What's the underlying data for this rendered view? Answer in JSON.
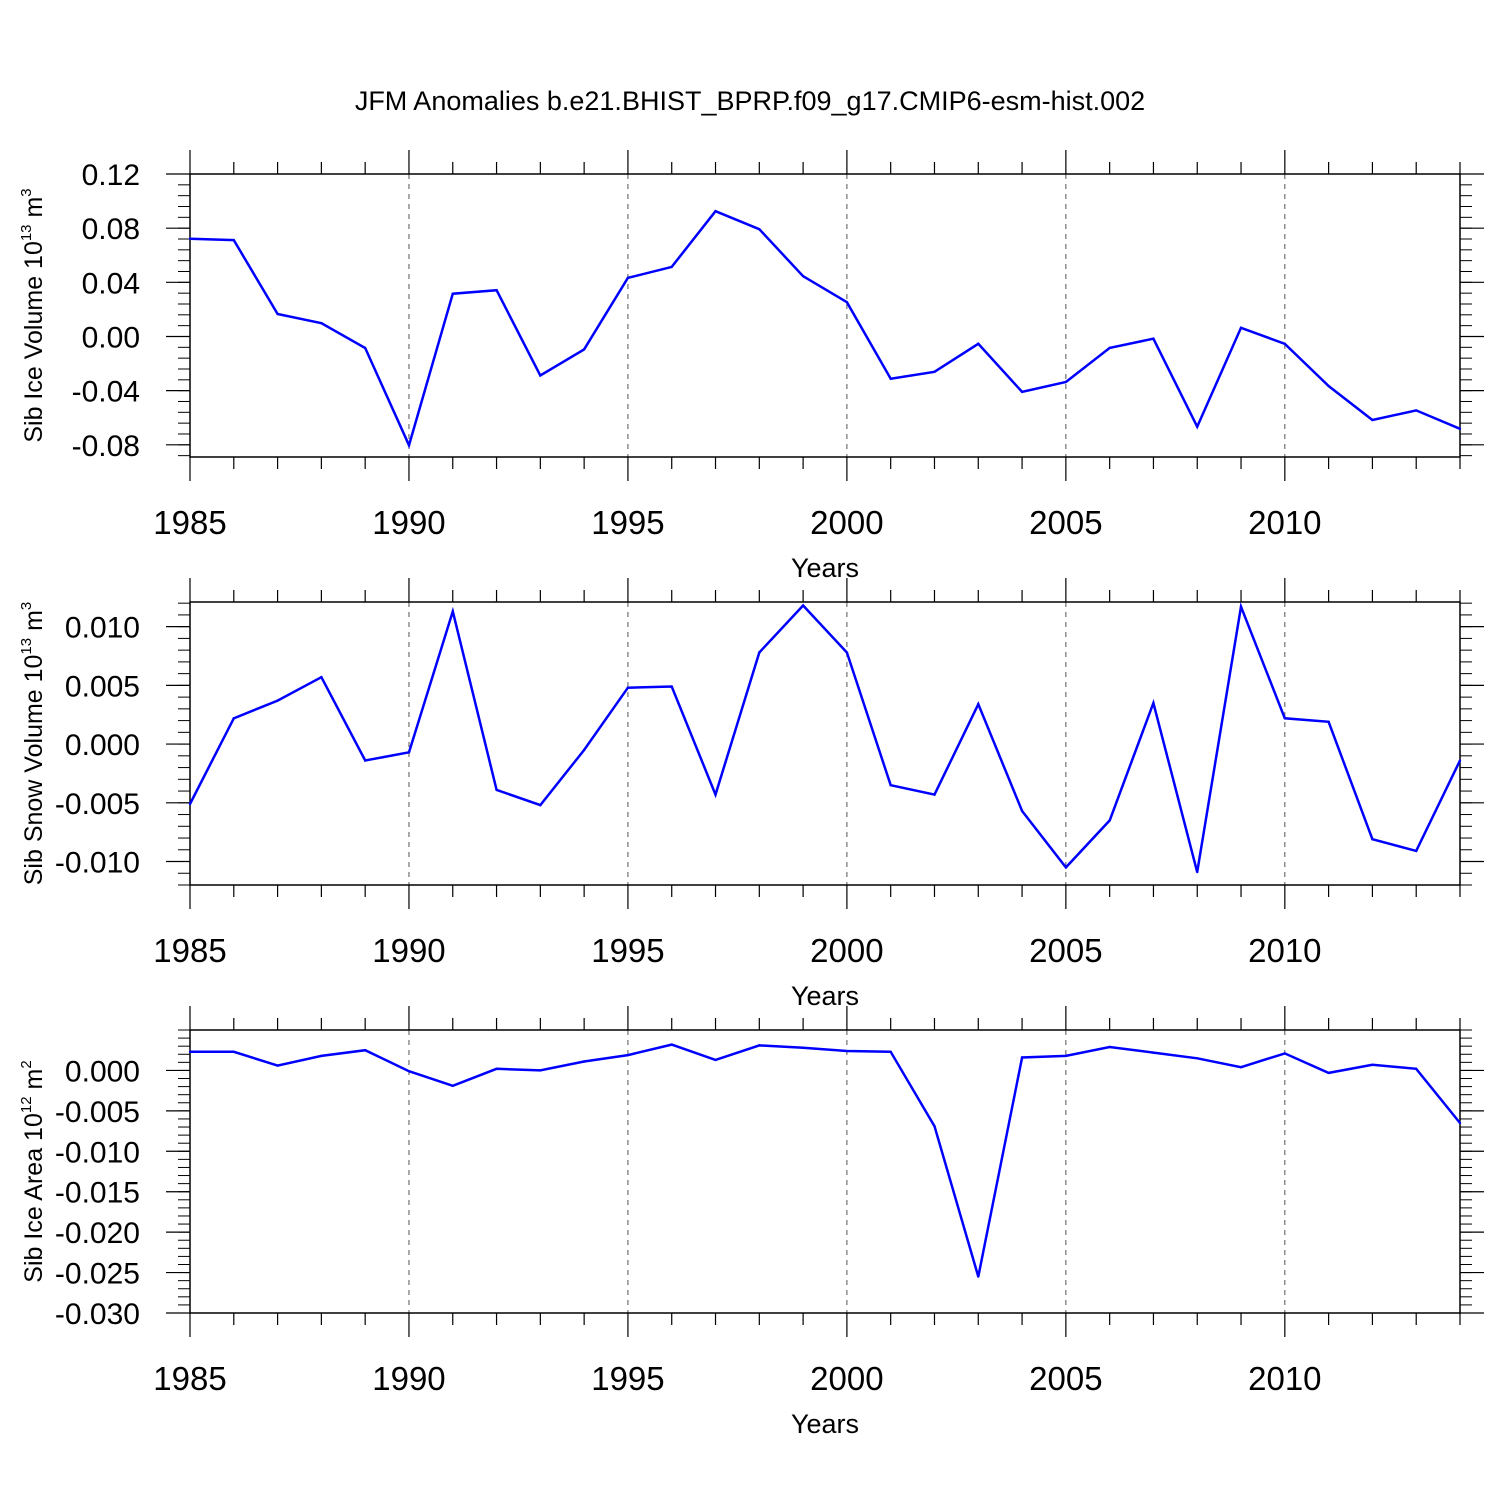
{
  "title": "JFM Anomalies b.e21.BHIST_BPRP.f09_g17.CMIP6-esm-hist.002",
  "chart_data": [
    {
      "type": "line",
      "xlabel": "Years",
      "ylabel": {
        "text": "Sib Ice Volume 10",
        "exponent": "13",
        "unit": " m",
        "unit_exponent": "3"
      },
      "xlim": [
        1985,
        2014
      ],
      "ylim": [
        -0.089,
        0.12
      ],
      "x_ticks": [
        "1985",
        "1990",
        "1995",
        "2000",
        "2005",
        "2010"
      ],
      "y_ticks": [
        "0.12",
        "0.08",
        "0.04",
        "0.00",
        "-0.04",
        "-0.08"
      ],
      "x_major_step": 5,
      "y_tick_values": [
        0.12,
        0.08,
        0.04,
        0.0,
        -0.04,
        -0.08
      ],
      "y_minor_step": 0.008,
      "grid": "vertical dashed at major x ticks",
      "line_color": "#0000ff",
      "x": [
        1985,
        1986,
        1987,
        1988,
        1989,
        1990,
        1991,
        1992,
        1993,
        1994,
        1995,
        1996,
        1997,
        1998,
        1999,
        2000,
        2001,
        2002,
        2003,
        2004,
        2005,
        2006,
        2007,
        2008,
        2009,
        2010,
        2011,
        2012,
        2013,
        2014
      ],
      "values": [
        0.0722,
        0.0712,
        0.0166,
        0.0098,
        -0.0085,
        -0.0803,
        0.0316,
        0.0342,
        -0.0288,
        -0.0095,
        0.0433,
        0.0514,
        0.0925,
        0.0792,
        0.0445,
        0.0253,
        -0.0312,
        -0.0261,
        -0.0054,
        -0.0409,
        -0.0336,
        -0.0084,
        -0.0016,
        -0.0666,
        0.0064,
        -0.0054,
        -0.0366,
        -0.0617,
        -0.0546,
        -0.0682
      ]
    },
    {
      "type": "line",
      "xlabel": "Years",
      "ylabel": {
        "text": "Sib Snow Volume 10",
        "exponent": "13",
        "unit": " m",
        "unit_exponent": "3"
      },
      "xlim": [
        1985,
        2014
      ],
      "ylim": [
        -0.012,
        0.0121
      ],
      "x_ticks": [
        "1985",
        "1990",
        "1995",
        "2000",
        "2005",
        "2010"
      ],
      "y_ticks": [
        "0.010",
        "0.005",
        "0.000",
        "-0.005",
        "-0.010"
      ],
      "x_major_step": 5,
      "y_tick_values": [
        0.01,
        0.005,
        0.0,
        -0.005,
        -0.01
      ],
      "y_minor_step": 0.001,
      "grid": "vertical dashed at major x ticks",
      "line_color": "#0000ff",
      "x": [
        1985,
        1986,
        1987,
        1988,
        1989,
        1990,
        1991,
        1992,
        1993,
        1994,
        1995,
        1996,
        1997,
        1998,
        1999,
        2000,
        2001,
        2002,
        2003,
        2004,
        2005,
        2006,
        2007,
        2008,
        2009,
        2010,
        2011,
        2012,
        2013,
        2014
      ],
      "values": [
        -0.0051,
        0.0022,
        0.0037,
        0.0057,
        -0.0014,
        -0.0007,
        0.0113,
        -0.0039,
        -0.0052,
        -0.0005,
        0.0048,
        0.0049,
        -0.0043,
        0.0078,
        0.0118,
        0.0078,
        -0.0035,
        -0.0043,
        0.0034,
        -0.0057,
        -0.0105,
        -0.0065,
        0.0035,
        -0.0109,
        0.0117,
        0.0022,
        0.0019,
        -0.0081,
        -0.0091,
        -0.0014
      ]
    },
    {
      "type": "line",
      "xlabel": "Years",
      "ylabel": {
        "text": "Sib Ice Area 10",
        "exponent": "12",
        "unit": " m",
        "unit_exponent": "2"
      },
      "xlim": [
        1985,
        2014
      ],
      "ylim": [
        -0.03,
        0.005
      ],
      "x_ticks": [
        "1985",
        "1990",
        "1995",
        "2000",
        "2005",
        "2010"
      ],
      "y_ticks": [
        "0.000",
        "-0.005",
        "-0.010",
        "-0.015",
        "-0.020",
        "-0.025",
        "-0.030"
      ],
      "x_major_step": 5,
      "y_tick_values": [
        0.0,
        -0.005,
        -0.01,
        -0.015,
        -0.02,
        -0.025,
        -0.03
      ],
      "y_minor_step": 0.001,
      "grid": "vertical dashed at major x ticks",
      "line_color": "#0000ff",
      "x": [
        1985,
        1986,
        1987,
        1988,
        1989,
        1990,
        1991,
        1992,
        1993,
        1994,
        1995,
        1996,
        1997,
        1998,
        1999,
        2000,
        2001,
        2002,
        2003,
        2004,
        2005,
        2006,
        2007,
        2008,
        2009,
        2010,
        2011,
        2012,
        2013,
        2014
      ],
      "values": [
        0.0023,
        0.0023,
        0.0006,
        0.0018,
        0.0025,
        -0.0001,
        -0.0019,
        0.0002,
        0.0,
        0.0011,
        0.0019,
        0.0032,
        0.0013,
        0.0031,
        0.0028,
        0.0024,
        0.0023,
        -0.0069,
        -0.0255,
        0.0016,
        0.0018,
        0.0029,
        0.0022,
        0.0015,
        0.0004,
        0.0021,
        -0.0003,
        0.0007,
        0.0002,
        -0.0065
      ]
    }
  ]
}
